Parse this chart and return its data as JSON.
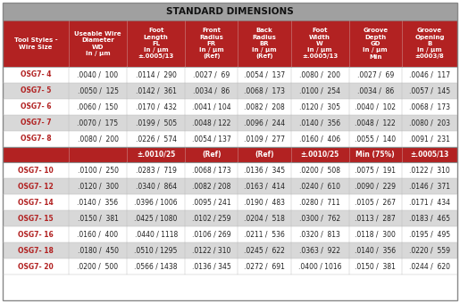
{
  "title": "STANDARD DIMENSIONS",
  "title_bg": "#A0A0A0",
  "header_bg": "#B22222",
  "header_text_color": "#FFFFFF",
  "separator_bg": "#B22222",
  "row_colors": [
    "#FFFFFF",
    "#D8D8D8"
  ],
  "col_headers": [
    "Tool Styles -\nWire Size",
    "Useable Wire\nDiameter\nWD\nin / μm",
    "Foot\nLength\nFL\nIn / μm\n±.0005/13",
    "Front\nRadius\nFR\nin / μm\n(Ref)",
    "Back\nRadius\nBR\nin / μm\n(Ref)",
    "Foot\nWidth\nW\nin / μm\n±.0005/13",
    "Groove\nDepth\nGD\nIn / μm\nMin",
    "Groove\nOpening\nB\nin / μm\n±0003/8"
  ],
  "separator_row": [
    "",
    "",
    "±.0010/25",
    "(Ref)",
    "(Ref)",
    "±.0010/25",
    "Min (75%)",
    "±.0005/13"
  ],
  "rows_top": [
    [
      "OSG7- 4",
      ".0040 /  100",
      ".0114 /  290",
      ".0027 /  69",
      ".0054 /  137",
      ".0080 /  200",
      ".0027 /  69",
      ".0046 /  117"
    ],
    [
      "OSG7- 5",
      ".0050 /  125",
      ".0142 /  361",
      ".0034 /  86",
      ".0068 /  173",
      ".0100 /  254",
      ".0034 /  86",
      ".0057 /  145"
    ],
    [
      "OSG7- 6",
      ".0060 /  150",
      ".0170 /  432",
      ".0041 / 104",
      ".0082 /  208",
      ".0120 /  305",
      ".0040 /  102",
      ".0068 /  173"
    ],
    [
      "OSG7- 7",
      ".0070 /  175",
      ".0199 /  505",
      ".0048 / 122",
      ".0096 /  244",
      ".0140 /  356",
      ".0048 /  122",
      ".0080 /  203"
    ],
    [
      "OSG7- 8",
      ".0080 /  200",
      ".0226 /  574",
      ".0054 / 137",
      ".0109 /  277",
      ".0160 /  406",
      ".0055 /  140",
      ".0091 /  231"
    ]
  ],
  "rows_bottom": [
    [
      "OSG7- 10",
      ".0100 /  250",
      ".0283 /  719",
      ".0068 / 173",
      ".0136 /  345",
      ".0200 /  508",
      ".0075 /  191",
      ".0122 /  310"
    ],
    [
      "OSG7- 12",
      ".0120 /  300",
      ".0340 /  864",
      ".0082 / 208",
      ".0163 /  414",
      ".0240 /  610",
      ".0090 /  229",
      ".0146 /  371"
    ],
    [
      "OSG7- 14",
      ".0140 /  356",
      ".0396 / 1006",
      ".0095 / 241",
      ".0190 /  483",
      ".0280 /  711",
      ".0105 /  267",
      ".0171 /  434"
    ],
    [
      "OSG7- 15",
      ".0150 /  381",
      ".0425 / 1080",
      ".0102 / 259",
      ".0204 /  518",
      ".0300 /  762",
      ".0113 /  287",
      ".0183 /  465"
    ],
    [
      "OSG7- 16",
      ".0160 /  400",
      ".0440 / 1118",
      ".0106 / 269",
      ".0211 /  536",
      ".0320 /  813",
      ".0118 /  300",
      ".0195 /  495"
    ],
    [
      "OSG7- 18",
      ".0180 /  450",
      ".0510 / 1295",
      ".0122 / 310",
      ".0245 /  622",
      ".0363 /  922",
      ".0140 /  356",
      ".0220 /  559"
    ],
    [
      "OSG7- 20",
      ".0200 /  500",
      ".0566 / 1438",
      ".0136 / 345",
      ".0272 /  691",
      ".0400 / 1016",
      ".0150 /  381",
      ".0244 /  620"
    ]
  ],
  "col_widths_raw": [
    1.25,
    1.1,
    1.1,
    1.0,
    1.0,
    1.1,
    1.0,
    1.05
  ],
  "title_fontsize": 7.5,
  "header_fontsize": 5.0,
  "data_fontsize": 5.5,
  "sep_fontsize": 5.5,
  "name_fontsize": 5.5
}
